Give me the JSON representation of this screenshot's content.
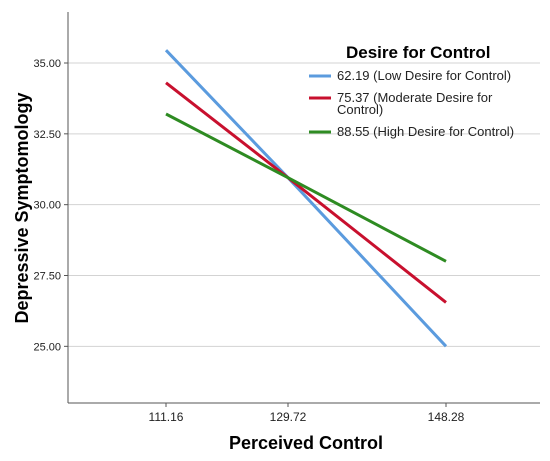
{
  "chart_data": {
    "type": "line",
    "title": "",
    "xlabel": "Perceived Control",
    "ylabel": "Depressive Symptomology",
    "categories": [
      "111.16",
      "129.72",
      "148.28"
    ],
    "y_ticks": [
      "25.00",
      "27.50",
      "30.00",
      "32.50",
      "35.00"
    ],
    "ylim": [
      23.0,
      36.8
    ],
    "grid": "horizontal",
    "legend": {
      "title": "Desire for Control",
      "placement": "top-right"
    },
    "series": [
      {
        "name": "62.19 (Low Desire for Control)",
        "name_lines": [
          "62.19 (Low Desire for Control)"
        ],
        "color": "#5b9bde",
        "values": [
          35.45,
          30.95,
          25.0
        ]
      },
      {
        "name": "75.37 (Moderate Desire for Control)",
        "name_lines": [
          "75.37 (Moderate Desire for",
          "Control)"
        ],
        "color": "#c8102e",
        "values": [
          34.3,
          30.95,
          26.55
        ]
      },
      {
        "name": "88.55 (High Desire for Control)",
        "name_lines": [
          "88.55 (High Desire for Control)"
        ],
        "color": "#2e8b22",
        "values": [
          33.2,
          30.95,
          28.0
        ]
      }
    ]
  }
}
